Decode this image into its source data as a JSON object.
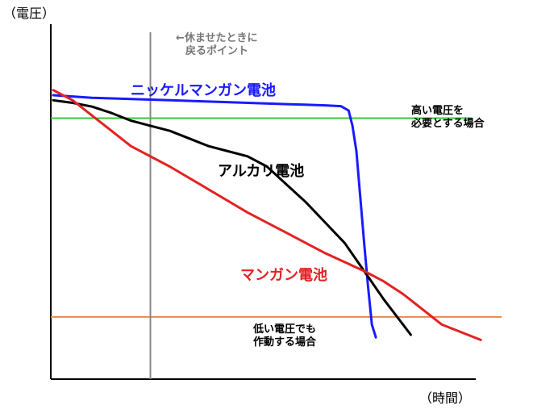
{
  "chart_data": {
    "type": "line",
    "title": "",
    "ylabel": "（電圧）",
    "xlabel": "（時間）",
    "ylim": [
      0,
      100
    ],
    "xlim": [
      0,
      100
    ],
    "grid": false,
    "legend": "none",
    "series": [
      {
        "name": "ニッケルマンガン電池",
        "color": "#1a1aff",
        "points": [
          [
            0,
            100
          ],
          [
            5,
            99.5
          ],
          [
            10,
            99
          ],
          [
            20,
            98.5
          ],
          [
            30,
            98
          ],
          [
            40,
            97.5
          ],
          [
            50,
            97
          ],
          [
            60,
            96.5
          ],
          [
            70,
            96
          ],
          [
            74,
            95.7
          ],
          [
            76,
            94
          ],
          [
            77,
            88
          ],
          [
            78,
            78
          ],
          [
            79,
            60
          ],
          [
            80,
            42
          ],
          [
            81,
            25
          ],
          [
            82,
            10
          ],
          [
            83,
            5
          ]
        ]
      },
      {
        "name": "アルカリ電池",
        "color": "#000000",
        "points": [
          [
            0,
            98
          ],
          [
            5,
            97
          ],
          [
            10,
            95.5
          ],
          [
            15,
            93
          ],
          [
            20,
            90
          ],
          [
            25,
            88
          ],
          [
            30,
            86
          ],
          [
            35,
            83
          ],
          [
            40,
            80
          ],
          [
            45,
            78
          ],
          [
            50,
            76
          ],
          [
            55,
            72
          ],
          [
            60,
            65
          ],
          [
            65,
            58
          ],
          [
            70,
            50
          ],
          [
            75,
            42
          ],
          [
            80,
            31
          ],
          [
            85,
            20
          ],
          [
            90,
            10
          ],
          [
            92,
            6
          ]
        ]
      },
      {
        "name": "マンガン電池",
        "color": "#e32222",
        "points": [
          [
            0,
            102
          ],
          [
            5,
            98
          ],
          [
            10,
            92
          ],
          [
            15,
            86
          ],
          [
            20,
            80
          ],
          [
            30,
            72
          ],
          [
            40,
            63
          ],
          [
            50,
            54
          ],
          [
            60,
            46
          ],
          [
            70,
            38
          ],
          [
            80,
            31
          ],
          [
            85,
            27
          ],
          [
            90,
            22
          ],
          [
            95,
            16
          ],
          [
            100,
            10
          ],
          [
            110,
            4
          ]
        ]
      }
    ],
    "reference_lines": [
      {
        "type": "horizontal",
        "y": 91,
        "color": "#33cc33",
        "label": "高い電圧を必要とする場合",
        "label_lines": [
          "高い電圧を",
          "必要とする場合"
        ]
      },
      {
        "type": "horizontal",
        "y": 13,
        "color": "#ee8844",
        "label": "低い電圧でも作動する場合",
        "label_lines": [
          "低い電圧でも",
          "作動する場合"
        ]
      },
      {
        "type": "vertical",
        "x": 25,
        "color": "#888888",
        "label": "←休ませたときに戻るポイント",
        "label_lines": [
          "←休ませたときに",
          "戻るポイント"
        ]
      }
    ],
    "annotations": [
      {
        "text": "ニッケルマンガン電池",
        "series": "ニッケルマンガン電池",
        "color": "#1a1aff"
      },
      {
        "text": "アルカリ電池",
        "series": "アルカリ電池",
        "color": "#000000"
      },
      {
        "text": "マンガン電池",
        "series": "マンガン電池",
        "color": "#e32222"
      }
    ]
  }
}
